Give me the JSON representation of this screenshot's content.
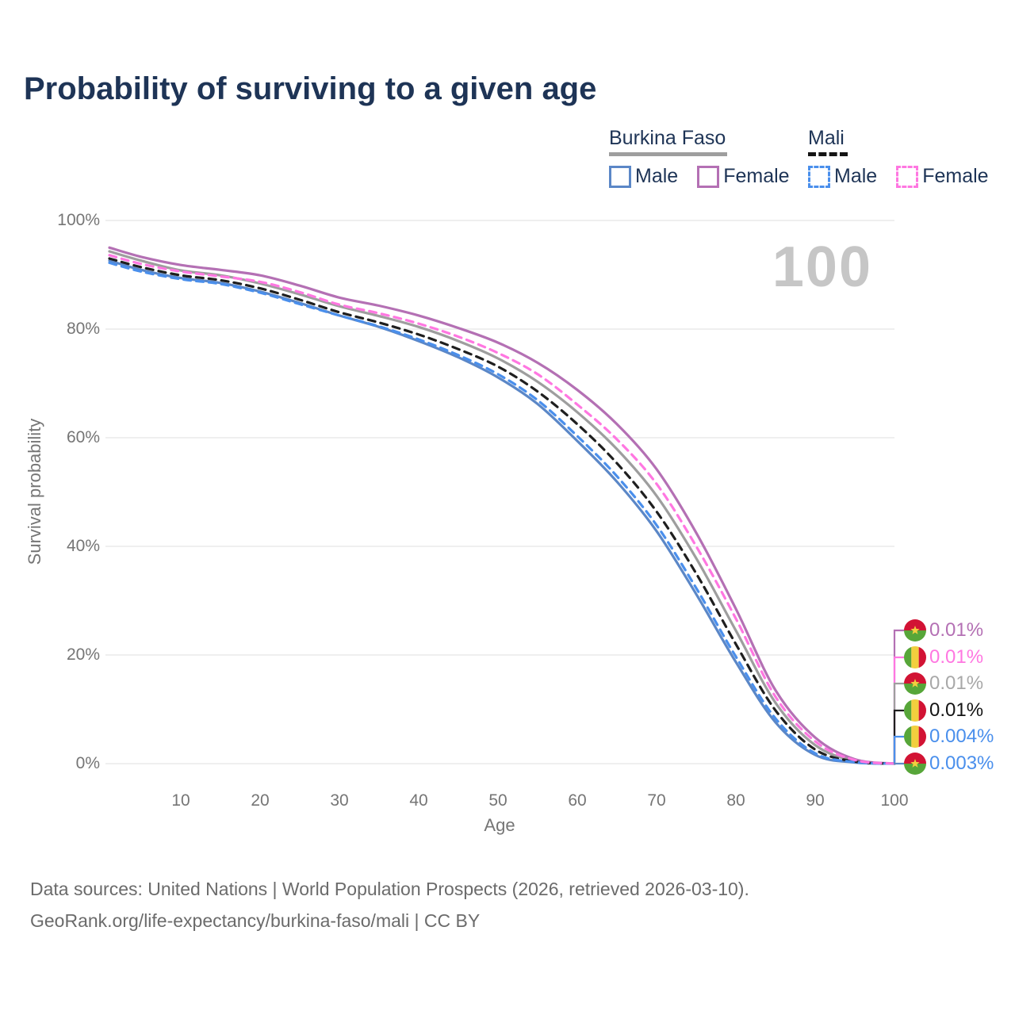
{
  "title": "Probability of surviving to a given age",
  "watermark": "100",
  "legend": {
    "burkina_faso": {
      "label": "Burkina Faso",
      "male": "Male",
      "female": "Female"
    },
    "mali": {
      "label": "Mali",
      "male": "Male",
      "female": "Female"
    }
  },
  "footer": {
    "line1": "Data sources: United Nations | World Population Prospects (2026, retrieved 2026-03-10).",
    "line2": "GeoRank.org/life-expectancy/burkina-faso/mali | CC BY"
  },
  "colors": {
    "title_text": "#1e3456",
    "axis_text": "#757575",
    "footer_text": "#6b6b6b",
    "gridline": "#eaeaea",
    "watermark": "#c6c6c6",
    "bf_male": "#5b87c7",
    "bf_female": "#b470b4",
    "bf_both": "#9e9e9e",
    "mali_male": "#4a8fec",
    "mali_female": "#ff77e1",
    "mali_both": "#1f1f1f",
    "flag_red": "#d21334",
    "flag_green": "#57a639",
    "flag_yellow": "#f2cf3e",
    "end_label_gray": "#a8a8a8",
    "end_label_black": "#141414"
  },
  "chart_data": {
    "type": "line",
    "title": "Probability of surviving to a given age",
    "xlabel": "Age",
    "ylabel": "Survival probability",
    "xlim": [
      0,
      100
    ],
    "ylim": [
      0,
      100
    ],
    "grid": "horizontal",
    "legend_position": "top-right",
    "x_ticks": [
      10,
      20,
      30,
      40,
      50,
      60,
      70,
      80,
      90,
      100
    ],
    "x_tick_labels": [
      "10",
      "20",
      "30",
      "40",
      "50",
      "60",
      "70",
      "80",
      "90",
      "100"
    ],
    "y_ticks": [
      100,
      80,
      60,
      40,
      20,
      0
    ],
    "y_tick_labels": [
      "100%",
      "80%",
      "60%",
      "40%",
      "20%",
      "0%"
    ],
    "x": [
      1,
      5,
      10,
      15,
      20,
      25,
      30,
      35,
      40,
      45,
      50,
      55,
      60,
      65,
      70,
      75,
      80,
      85,
      90,
      95,
      100
    ],
    "series": [
      {
        "name": "Burkina Faso Female",
        "country": "Burkina Faso",
        "sex": "Female",
        "line_style": "solid",
        "color": "#b470b4",
        "flag": "burkina-faso",
        "end_label": "0.01%",
        "end_label_color": "#b470b4",
        "values": [
          95.0,
          93.3,
          91.8,
          90.9,
          89.9,
          88.0,
          85.8,
          84.3,
          82.5,
          80.2,
          77.5,
          73.8,
          68.8,
          62.5,
          54.2,
          42.5,
          28.5,
          13.5,
          4.8,
          0.8,
          0.01
        ]
      },
      {
        "name": "Mali Female",
        "country": "Mali",
        "sex": "Female",
        "line_style": "dashed",
        "color": "#ff77e1",
        "flag": "mali",
        "end_label": "0.01%",
        "end_label_color": "#ff77e1",
        "values": [
          93.6,
          92.0,
          90.6,
          89.7,
          88.7,
          86.8,
          84.5,
          82.9,
          81.0,
          78.6,
          75.6,
          71.7,
          66.1,
          59.7,
          51.5,
          40.0,
          26.7,
          12.3,
          4.1,
          0.65,
          0.01
        ]
      },
      {
        "name": "Burkina Faso Both sexes",
        "country": "Burkina Faso",
        "sex": "Both",
        "line_style": "solid",
        "color": "#9e9e9e",
        "flag": "burkina-faso",
        "end_label": "0.01%",
        "end_label_color": "#a8a8a8",
        "values": [
          94.3,
          92.6,
          90.8,
          89.9,
          88.4,
          86.4,
          84.2,
          82.4,
          80.4,
          77.8,
          74.6,
          70.3,
          64.7,
          57.9,
          49.3,
          37.8,
          24.5,
          11.2,
          3.4,
          0.5,
          0.01
        ]
      },
      {
        "name": "Mali Both sexes",
        "country": "Mali",
        "sex": "Both",
        "line_style": "dashed",
        "color": "#1f1f1f",
        "flag": "mali",
        "end_label": "0.01%",
        "end_label_color": "#141414",
        "values": [
          93.0,
          91.4,
          89.9,
          89.0,
          87.5,
          85.4,
          83.1,
          81.2,
          79.0,
          76.3,
          73.1,
          68.5,
          62.5,
          55.3,
          46.4,
          35.0,
          22.0,
          9.8,
          2.6,
          0.38,
          0.01
        ]
      },
      {
        "name": "Mali Male",
        "country": "Mali",
        "sex": "Male",
        "line_style": "dashed",
        "color": "#4a8fec",
        "flag": "mali",
        "end_label": "0.004%",
        "end_label_color": "#4a8fec",
        "values": [
          92.2,
          90.6,
          89.2,
          88.3,
          86.7,
          84.6,
          82.5,
          80.5,
          78.1,
          75.2,
          71.7,
          66.9,
          60.3,
          52.9,
          43.9,
          32.3,
          19.7,
          8.3,
          1.9,
          0.28,
          0.004
        ]
      },
      {
        "name": "Burkina Faso Male",
        "country": "Burkina Faso",
        "sex": "Male",
        "line_style": "solid",
        "color": "#5b87c7",
        "flag": "burkina-faso",
        "end_label": "0.003%",
        "end_label_color": "#4a8fec",
        "values": [
          92.6,
          90.9,
          89.4,
          88.5,
          86.9,
          84.8,
          82.5,
          80.4,
          77.8,
          74.8,
          71.1,
          66.2,
          59.4,
          51.9,
          42.8,
          31.2,
          18.7,
          7.6,
          1.6,
          0.22,
          0.003
        ]
      }
    ]
  }
}
